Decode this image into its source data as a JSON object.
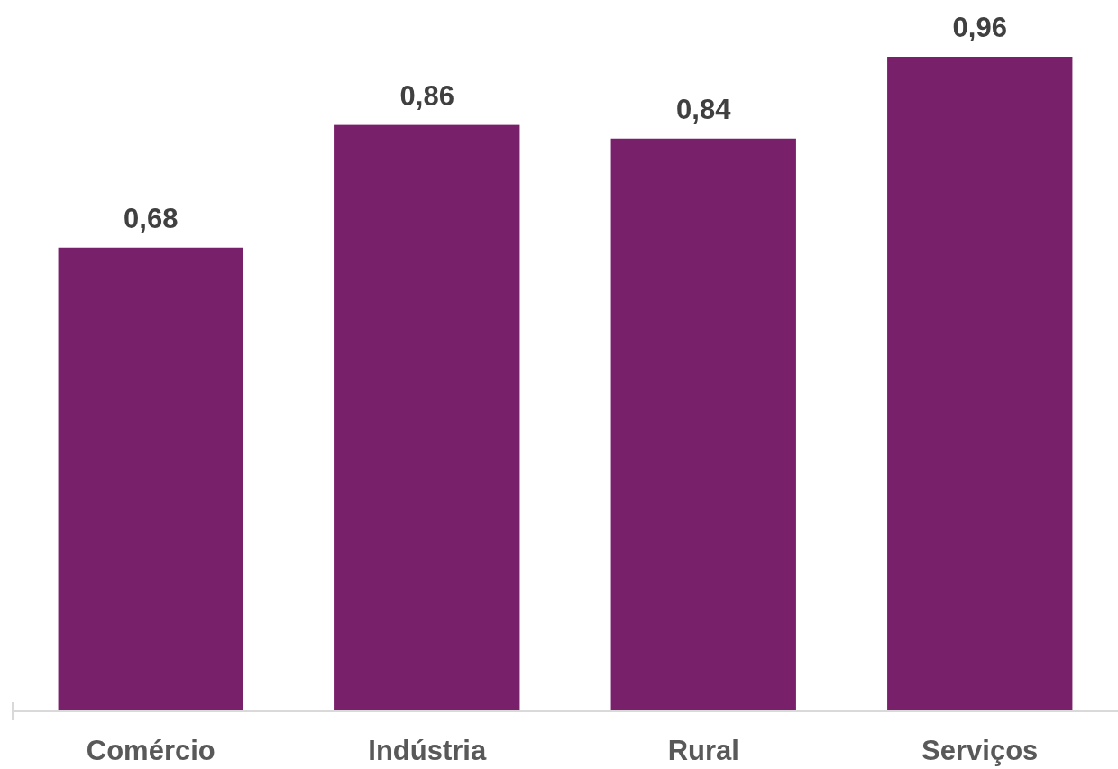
{
  "chart_data": {
    "type": "bar",
    "categories": [
      "Comércio",
      "Indústria",
      "Rural",
      "Serviços"
    ],
    "values": [
      0.68,
      0.86,
      0.84,
      0.96
    ],
    "color": "#79206b",
    "value_labels": [
      "0,68",
      "0,86",
      "0,84",
      "0,96"
    ],
    "tick_labels": "x"
  }
}
